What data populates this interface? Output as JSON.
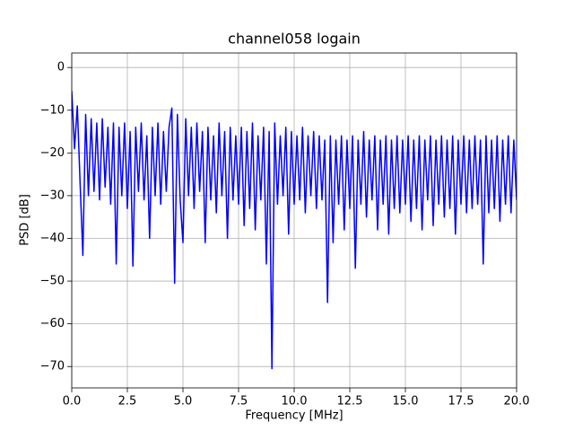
{
  "chart_data": {
    "type": "line",
    "title": "channel058 logain",
    "x_label": "Frequency [MHz]",
    "y_label": "PSD [dB]",
    "xlim": [
      0,
      20
    ],
    "ylim": [
      -75,
      3.4
    ],
    "xticks": [
      {
        "value": 0,
        "label": "0.0"
      },
      2.5,
      {
        "value": 5,
        "label": "5.0"
      },
      7.5,
      {
        "value": 10,
        "label": "10.0"
      },
      12.5,
      {
        "value": 15,
        "label": "15.0"
      },
      17.5,
      {
        "value": 20,
        "label": "20.0"
      }
    ],
    "yticks": [
      {
        "value": 0,
        "label": "0"
      },
      {
        "value": -10,
        "label": "−10"
      },
      {
        "value": -20,
        "label": "−20"
      },
      {
        "value": -30,
        "label": "−30"
      },
      {
        "value": -40,
        "label": "−40"
      },
      {
        "value": -50,
        "label": "−50"
      },
      {
        "value": -60,
        "label": "−60"
      },
      {
        "value": -70,
        "label": "−70"
      }
    ],
    "grid": true,
    "x": [
      0,
      0.125,
      0.25,
      0.375,
      0.5,
      0.625,
      0.75,
      0.875,
      1,
      1.125,
      1.25,
      1.375,
      1.5,
      1.625,
      1.75,
      1.875,
      2,
      2.125,
      2.25,
      2.375,
      2.5,
      2.625,
      2.75,
      2.875,
      3,
      3.125,
      3.25,
      3.375,
      3.5,
      3.625,
      3.75,
      3.875,
      4,
      4.125,
      4.25,
      4.375,
      4.5,
      4.625,
      4.75,
      4.875,
      5,
      5.125,
      5.25,
      5.375,
      5.5,
      5.625,
      5.75,
      5.875,
      6,
      6.125,
      6.25,
      6.375,
      6.5,
      6.625,
      6.75,
      6.875,
      7,
      7.125,
      7.25,
      7.375,
      7.5,
      7.625,
      7.75,
      7.875,
      8,
      8.125,
      8.25,
      8.375,
      8.5,
      8.625,
      8.75,
      8.875,
      9,
      9.125,
      9.25,
      9.375,
      9.5,
      9.625,
      9.75,
      9.875,
      10,
      10.125,
      10.25,
      10.375,
      10.5,
      10.625,
      10.75,
      10.875,
      11,
      11.125,
      11.25,
      11.375,
      11.5,
      11.625,
      11.75,
      11.875,
      12,
      12.125,
      12.25,
      12.375,
      12.5,
      12.625,
      12.75,
      12.875,
      13,
      13.125,
      13.25,
      13.375,
      13.5,
      13.625,
      13.75,
      13.875,
      14,
      14.125,
      14.25,
      14.375,
      14.5,
      14.625,
      14.75,
      14.875,
      15,
      15.125,
      15.25,
      15.375,
      15.5,
      15.625,
      15.75,
      15.875,
      16,
      16.125,
      16.25,
      16.375,
      16.5,
      16.625,
      16.75,
      16.875,
      17,
      17.125,
      17.25,
      17.375,
      17.5,
      17.625,
      17.75,
      17.875,
      18,
      18.125,
      18.25,
      18.375,
      18.5,
      18.625,
      18.75,
      18.875,
      19,
      19.125,
      19.25,
      19.375,
      19.5,
      19.625,
      19.75,
      19.875,
      20
    ],
    "series": [
      {
        "color": "#0000ff",
        "values": [
          -5.5,
          -19,
          -9,
          -27,
          -44,
          -11,
          -30,
          -12,
          -29,
          -13,
          -31,
          -12,
          -28,
          -14,
          -32,
          -13,
          -46,
          -14,
          -30,
          -13,
          -33,
          -15,
          -46.5,
          -14,
          -29,
          -13,
          -31,
          -16,
          -40,
          -14,
          -30,
          -13,
          -32,
          -15,
          -29,
          -14,
          -9.5,
          -50.5,
          -11,
          -31,
          -41,
          -12,
          -30,
          -14,
          -33,
          -13,
          -29,
          -15,
          -41,
          -14,
          -31,
          -16,
          -34,
          -13,
          -30,
          -15,
          -40,
          -14,
          -31,
          -16,
          -32,
          -14,
          -37,
          -15,
          -33,
          -13,
          -38,
          -16,
          -31,
          -14,
          -46,
          -15,
          -70.5,
          -13,
          -32,
          -16,
          -30,
          -14,
          -39,
          -15,
          -32,
          -16,
          -31,
          -14,
          -34,
          -16,
          -30,
          -15,
          -33,
          -16,
          -31,
          -17,
          -55,
          -16,
          -41,
          -17,
          -32,
          -16,
          -38,
          -17,
          -33,
          -16,
          -47,
          -17,
          -32,
          -15,
          -35,
          -17,
          -31,
          -16,
          -38,
          -17,
          -32,
          -16,
          -39,
          -17,
          -33,
          -16,
          -34,
          -17,
          -32,
          -16,
          -36,
          -17,
          -33,
          -16,
          -38,
          -17,
          -31,
          -16,
          -37,
          -17,
          -32,
          -16,
          -35,
          -17,
          -33,
          -16,
          -39,
          -17,
          -32,
          -16,
          -34,
          -17,
          -33,
          -16,
          -32,
          -17,
          -46,
          -16,
          -34,
          -17,
          -33,
          -16,
          -36,
          -17,
          -32,
          -16,
          -34,
          -17,
          -31
        ]
      }
    ]
  }
}
